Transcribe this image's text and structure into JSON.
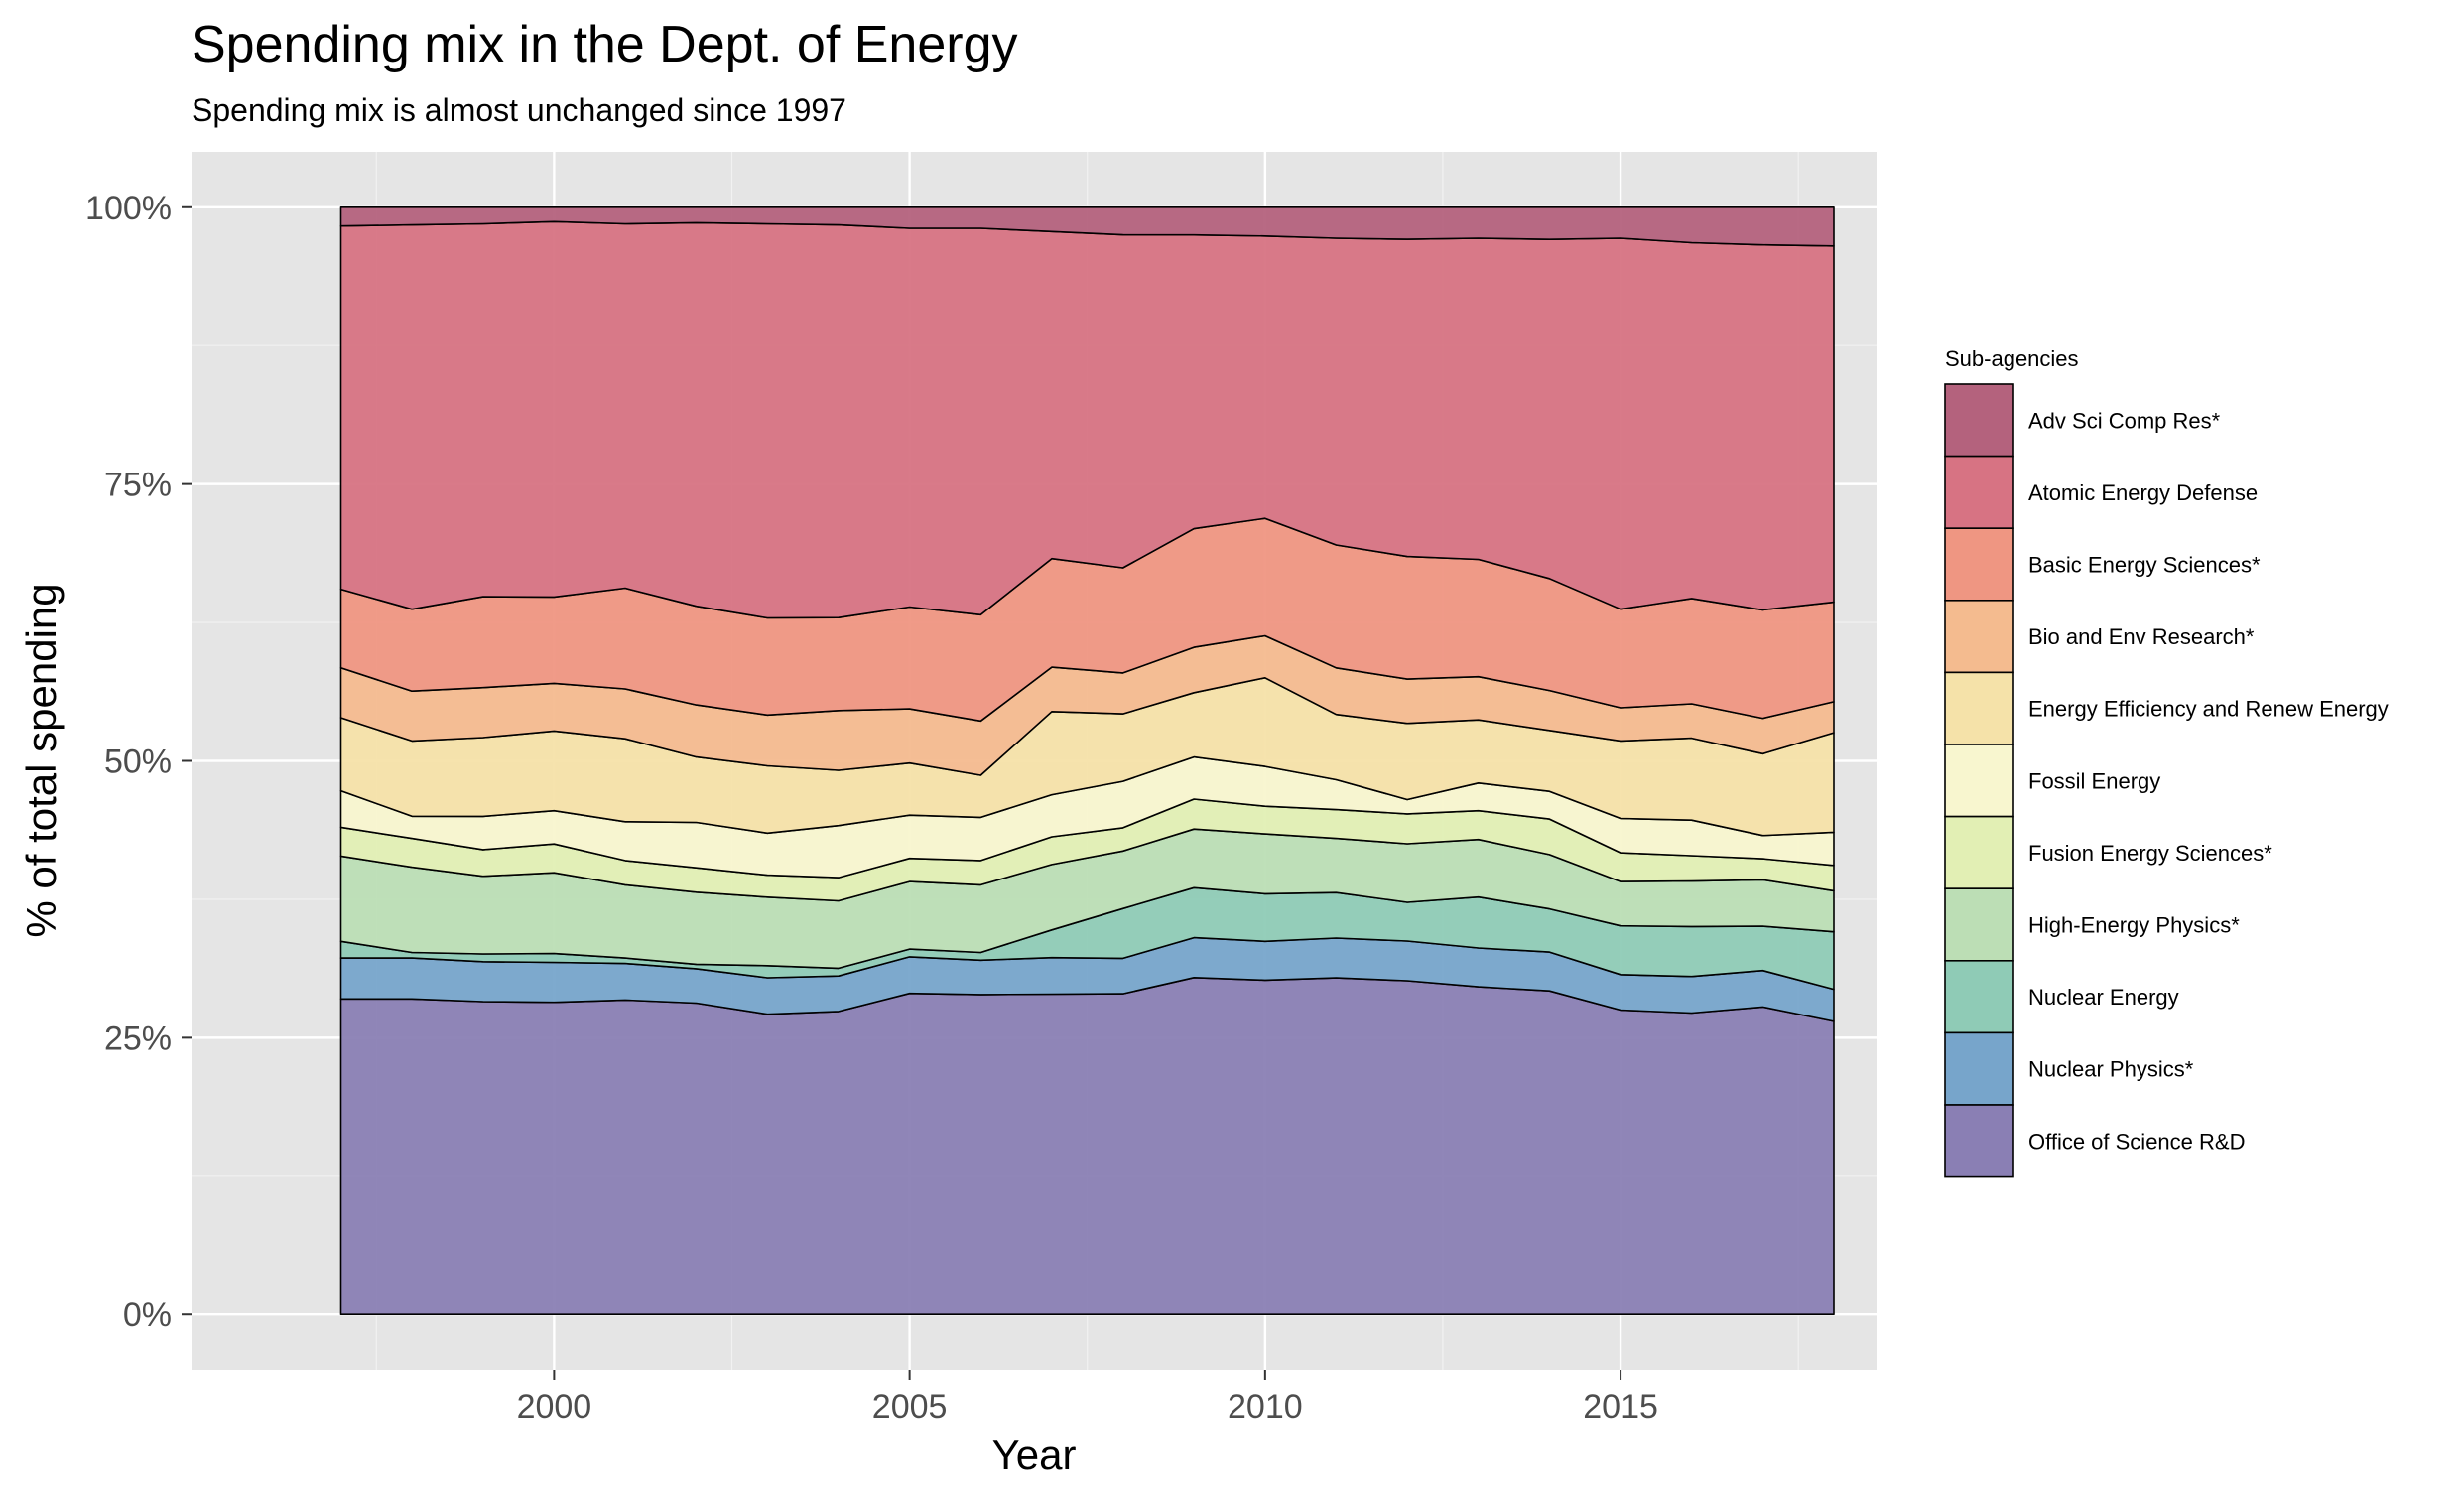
{
  "chart_data": {
    "type": "area",
    "stacking": "percent",
    "title": "Spending mix in the Dept. of Energy",
    "subtitle": "Spending mix is almost unchanged since 1997",
    "xlabel": "Year",
    "ylabel": "% of total spending",
    "x": [
      1997,
      1998,
      1999,
      2000,
      2001,
      2002,
      2003,
      2004,
      2005,
      2006,
      2007,
      2008,
      2009,
      2010,
      2011,
      2012,
      2013,
      2014,
      2015,
      2016,
      2017,
      2018
    ],
    "xlim": [
      1994.9,
      2018.6
    ],
    "xticks": [
      2000,
      2005,
      2010,
      2015
    ],
    "xtick_labels": [
      "2000",
      "2005",
      "2010",
      "2015"
    ],
    "ylim": [
      -0.05,
      1.05
    ],
    "yticks": [
      0,
      0.25,
      0.5,
      0.75,
      1.0
    ],
    "ytick_labels": [
      "0%",
      "25%",
      "50%",
      "75%",
      "100%"
    ],
    "grid": true,
    "background": "#e5e5e5",
    "legend_title": "Sub-agencies",
    "legend_position": "right",
    "series": [
      {
        "name": "Office of Science R&D",
        "color": "#8a7fb4",
        "values": [
          0.285,
          0.285,
          0.282,
          0.282,
          0.284,
          0.281,
          0.272,
          0.274,
          0.29,
          0.289,
          0.289,
          0.29,
          0.304,
          0.302,
          0.304,
          0.302,
          0.296,
          0.292,
          0.275,
          0.272,
          0.278,
          0.265
        ]
      },
      {
        "name": "Nuclear Physics*",
        "color": "#77a5cb",
        "values": [
          0.037,
          0.037,
          0.036,
          0.036,
          0.033,
          0.031,
          0.033,
          0.032,
          0.033,
          0.031,
          0.033,
          0.032,
          0.036,
          0.035,
          0.036,
          0.036,
          0.035,
          0.035,
          0.032,
          0.033,
          0.033,
          0.029
        ]
      },
      {
        "name": "Nuclear Energy",
        "color": "#8fcbb6",
        "values": [
          0.015,
          0.005,
          0.007,
          0.008,
          0.005,
          0.004,
          0.011,
          0.007,
          0.007,
          0.007,
          0.025,
          0.045,
          0.045,
          0.043,
          0.041,
          0.035,
          0.046,
          0.039,
          0.044,
          0.045,
          0.04,
          0.052
        ]
      },
      {
        "name": "High-Energy Physics*",
        "color": "#bcdeb5",
        "values": [
          0.077,
          0.077,
          0.07,
          0.073,
          0.066,
          0.065,
          0.062,
          0.061,
          0.061,
          0.061,
          0.059,
          0.052,
          0.053,
          0.054,
          0.049,
          0.053,
          0.052,
          0.049,
          0.04,
          0.041,
          0.042,
          0.037
        ]
      },
      {
        "name": "Fusion Energy Sciences*",
        "color": "#e2efb4",
        "values": [
          0.026,
          0.026,
          0.024,
          0.026,
          0.022,
          0.022,
          0.02,
          0.021,
          0.021,
          0.022,
          0.025,
          0.021,
          0.027,
          0.025,
          0.026,
          0.027,
          0.026,
          0.032,
          0.026,
          0.023,
          0.019,
          0.023
        ]
      },
      {
        "name": "Fossil Energy",
        "color": "#f8f6cf",
        "values": [
          0.033,
          0.02,
          0.03,
          0.03,
          0.035,
          0.041,
          0.038,
          0.047,
          0.039,
          0.039,
          0.038,
          0.042,
          0.038,
          0.036,
          0.027,
          0.013,
          0.025,
          0.025,
          0.031,
          0.032,
          0.021,
          0.03
        ]
      },
      {
        "name": "Energy Efficiency and Renew Energy",
        "color": "#f5e2a9",
        "values": [
          0.066,
          0.068,
          0.071,
          0.072,
          0.075,
          0.059,
          0.061,
          0.05,
          0.047,
          0.038,
          0.075,
          0.061,
          0.058,
          0.08,
          0.059,
          0.069,
          0.057,
          0.055,
          0.07,
          0.074,
          0.074,
          0.09
        ]
      },
      {
        "name": "Bio and Env Research*",
        "color": "#f4bb8f",
        "values": [
          0.045,
          0.045,
          0.045,
          0.043,
          0.045,
          0.047,
          0.046,
          0.054,
          0.049,
          0.049,
          0.04,
          0.037,
          0.041,
          0.038,
          0.042,
          0.04,
          0.039,
          0.036,
          0.03,
          0.031,
          0.032,
          0.028
        ]
      },
      {
        "name": "Basic Energy Sciences*",
        "color": "#ef9682",
        "values": [
          0.071,
          0.074,
          0.082,
          0.078,
          0.091,
          0.089,
          0.088,
          0.084,
          0.092,
          0.096,
          0.098,
          0.095,
          0.107,
          0.106,
          0.111,
          0.111,
          0.106,
          0.101,
          0.089,
          0.095,
          0.098,
          0.09
        ]
      },
      {
        "name": "Atomic Energy Defense",
        "color": "#d77383",
        "values": [
          0.328,
          0.347,
          0.336,
          0.339,
          0.329,
          0.346,
          0.357,
          0.355,
          0.342,
          0.349,
          0.295,
          0.301,
          0.265,
          0.255,
          0.277,
          0.287,
          0.29,
          0.306,
          0.335,
          0.321,
          0.33,
          0.322
        ]
      },
      {
        "name": "Adv Sci Comp Res*",
        "color": "#b4627d",
        "values": [
          0.017,
          0.016,
          0.015,
          0.013,
          0.015,
          0.014,
          0.015,
          0.016,
          0.019,
          0.019,
          0.022,
          0.025,
          0.025,
          0.026,
          0.028,
          0.029,
          0.028,
          0.029,
          0.028,
          0.032,
          0.034,
          0.035
        ]
      }
    ]
  }
}
